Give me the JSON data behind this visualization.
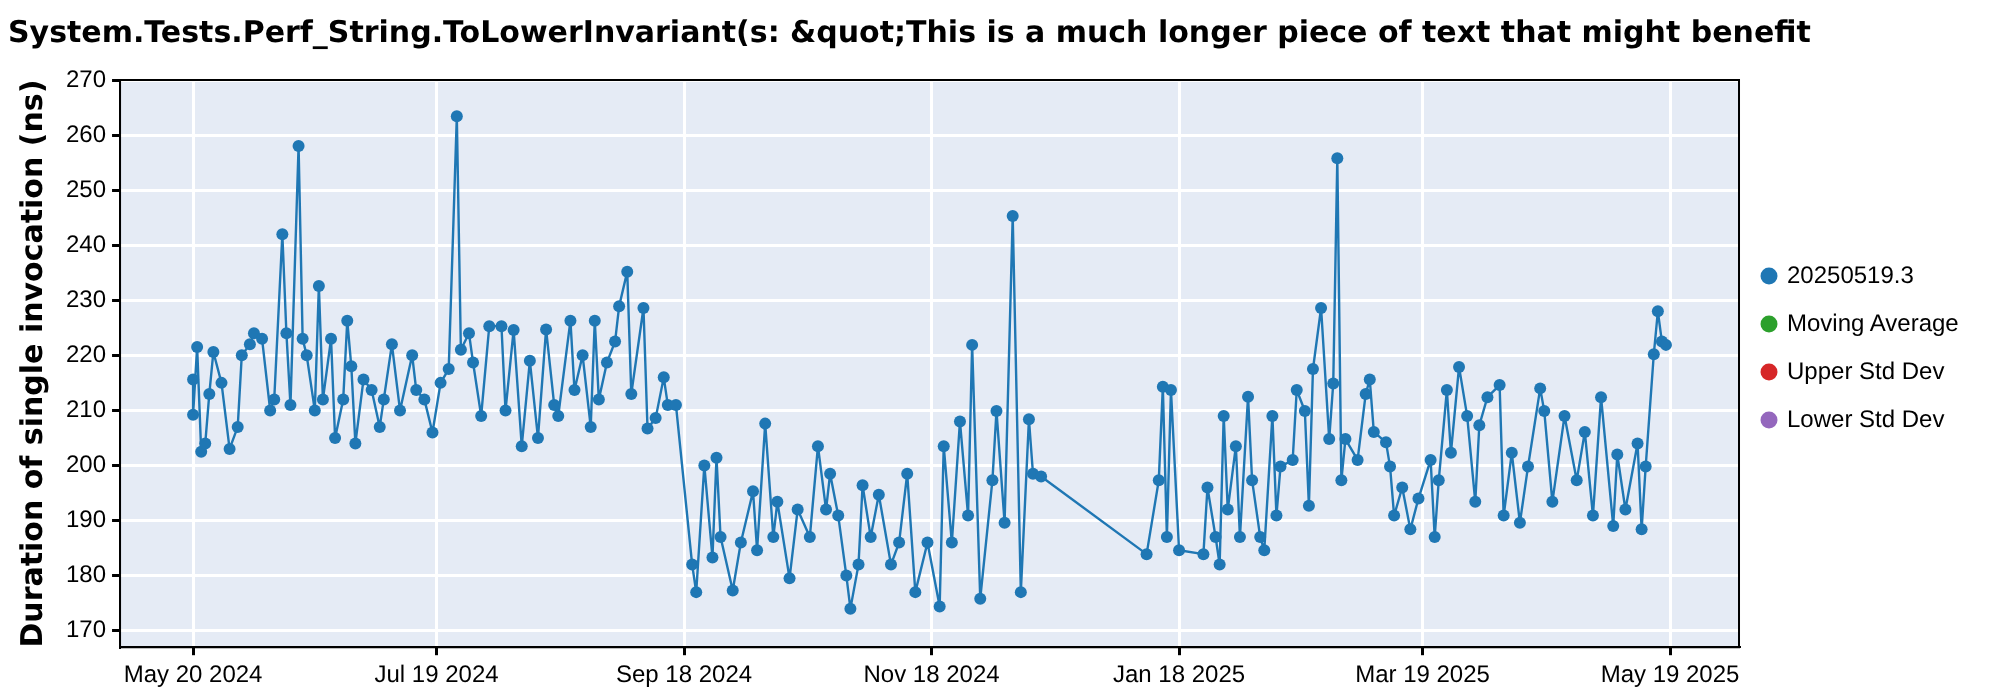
{
  "chart_data": {
    "type": "line",
    "title": "System.Tests.Perf_String.ToLowerInvariant(s: &quot;This is a much longer piece of text that might benefit",
    "ylabel": "Duration of single invocation (ns)",
    "xlim": [
      "2024-05-02",
      "2025-06-05"
    ],
    "xticks": [
      {
        "value": "2024-05-20",
        "label": "May 20 2024"
      },
      {
        "value": "2024-07-19",
        "label": "Jul 19 2024"
      },
      {
        "value": "2024-09-18",
        "label": "Sep 18 2024"
      },
      {
        "value": "2024-11-18",
        "label": "Nov 18 2024"
      },
      {
        "value": "2025-01-18",
        "label": "Jan 18 2025"
      },
      {
        "value": "2025-03-19",
        "label": "Mar 19 2025"
      },
      {
        "value": "2025-05-19",
        "label": "May 19 2025"
      }
    ],
    "ylim": [
      167,
      270
    ],
    "yticks": [
      170,
      180,
      190,
      200,
      210,
      220,
      230,
      240,
      250,
      260,
      270
    ],
    "grid": true,
    "legend": "right",
    "marker": "circle",
    "line_style": "solid",
    "series": [
      {
        "name": "20250519.3",
        "color": "#1f77b4",
        "x": [
          "2024-05-20",
          "2024-05-20",
          "2024-05-21",
          "2024-05-22",
          "2024-05-23",
          "2024-05-24",
          "2024-05-25",
          "2024-05-27",
          "2024-05-29",
          "2024-05-31",
          "2024-06-01",
          "2024-06-03",
          "2024-06-04",
          "2024-06-06",
          "2024-06-08",
          "2024-06-09",
          "2024-06-11",
          "2024-06-12",
          "2024-06-13",
          "2024-06-15",
          "2024-06-16",
          "2024-06-17",
          "2024-06-19",
          "2024-06-20",
          "2024-06-21",
          "2024-06-23",
          "2024-06-24",
          "2024-06-26",
          "2024-06-27",
          "2024-06-28",
          "2024-06-29",
          "2024-07-01",
          "2024-07-03",
          "2024-07-05",
          "2024-07-06",
          "2024-07-08",
          "2024-07-10",
          "2024-07-13",
          "2024-07-14",
          "2024-07-16",
          "2024-07-18",
          "2024-07-20",
          "2024-07-22",
          "2024-07-24",
          "2024-07-25",
          "2024-07-27",
          "2024-07-28",
          "2024-07-30",
          "2024-08-01",
          "2024-08-04",
          "2024-08-05",
          "2024-08-07",
          "2024-08-09",
          "2024-08-11",
          "2024-08-13",
          "2024-08-15",
          "2024-08-17",
          "2024-08-18",
          "2024-08-21",
          "2024-08-22",
          "2024-08-24",
          "2024-08-26",
          "2024-08-27",
          "2024-08-28",
          "2024-08-30",
          "2024-09-01",
          "2024-09-02",
          "2024-09-04",
          "2024-09-05",
          "2024-09-08",
          "2024-09-09",
          "2024-09-11",
          "2024-09-13",
          "2024-09-14",
          "2024-09-16",
          "2024-09-20",
          "2024-09-21",
          "2024-09-23",
          "2024-09-25",
          "2024-09-26",
          "2024-09-27",
          "2024-09-30",
          "2024-10-02",
          "2024-10-05",
          "2024-10-06",
          "2024-10-08",
          "2024-10-10",
          "2024-10-11",
          "2024-10-14",
          "2024-10-16",
          "2024-10-19",
          "2024-10-21",
          "2024-10-23",
          "2024-10-24",
          "2024-10-26",
          "2024-10-28",
          "2024-10-29",
          "2024-10-31",
          "2024-11-01",
          "2024-11-03",
          "2024-11-05",
          "2024-11-08",
          "2024-11-10",
          "2024-11-12",
          "2024-11-14",
          "2024-11-17",
          "2024-11-20",
          "2024-11-21",
          "2024-11-23",
          "2024-11-25",
          "2024-11-27",
          "2024-11-28",
          "2024-11-30",
          "2024-12-03",
          "2024-12-04",
          "2024-12-06",
          "2024-12-08",
          "2024-12-10",
          "2024-12-12",
          "2024-12-13",
          "2024-12-15",
          "2025-01-10",
          "2025-01-13",
          "2025-01-14",
          "2025-01-15",
          "2025-01-16",
          "2025-01-18",
          "2025-01-24",
          "2025-01-25",
          "2025-01-27",
          "2025-01-28",
          "2025-01-29",
          "2025-01-30",
          "2025-02-01",
          "2025-02-02",
          "2025-02-04",
          "2025-02-05",
          "2025-02-07",
          "2025-02-08",
          "2025-02-10",
          "2025-02-11",
          "2025-02-12",
          "2025-02-15",
          "2025-02-16",
          "2025-02-18",
          "2025-02-19",
          "2025-02-20",
          "2025-02-22",
          "2025-02-24",
          "2025-02-25",
          "2025-02-26",
          "2025-02-27",
          "2025-02-28",
          "2025-03-03",
          "2025-03-05",
          "2025-03-06",
          "2025-03-07",
          "2025-03-10",
          "2025-03-11",
          "2025-03-12",
          "2025-03-14",
          "2025-03-16",
          "2025-03-18",
          "2025-03-21",
          "2025-03-22",
          "2025-03-23",
          "2025-03-25",
          "2025-03-26",
          "2025-03-28",
          "2025-03-30",
          "2025-04-01",
          "2025-04-02",
          "2025-04-04",
          "2025-04-07",
          "2025-04-08",
          "2025-04-10",
          "2025-04-12",
          "2025-04-14",
          "2025-04-17",
          "2025-04-18",
          "2025-04-20",
          "2025-04-23",
          "2025-04-26",
          "2025-04-28",
          "2025-04-30",
          "2025-05-02",
          "2025-05-05",
          "2025-05-06",
          "2025-05-08",
          "2025-05-11",
          "2025-05-12",
          "2025-05-13",
          "2025-05-15",
          "2025-05-16",
          "2025-05-17",
          "2025-05-18"
        ],
        "values": [
          215.6,
          209.2,
          221.5,
          202.5,
          204,
          213,
          220.6,
          215,
          203,
          207,
          220,
          222,
          224,
          223,
          210,
          212,
          242,
          224,
          211,
          258,
          223,
          220,
          210,
          232.6,
          212,
          223,
          205,
          212,
          226.3,
          218,
          204,
          215.6,
          213.7,
          207,
          212,
          222,
          210,
          220,
          213.7,
          212,
          206,
          215,
          217.5,
          263.4,
          221,
          224,
          218.7,
          209,
          225.3,
          225.3,
          210,
          224.6,
          203.5,
          219,
          205,
          224.7,
          211,
          209,
          226.3,
          213.7,
          220,
          207,
          226.3,
          212,
          218.7,
          222.5,
          228.9,
          235.2,
          213,
          228.6,
          206.7,
          208.6,
          216,
          211,
          211,
          182,
          177,
          200,
          183.3,
          201.4,
          187,
          177.3,
          186,
          195.3,
          184.6,
          207.6,
          187,
          193.4,
          179.5,
          192,
          187,
          203.5,
          192,
          198.5,
          190.9,
          180,
          174,
          182,
          196.4,
          187,
          194.7,
          182,
          186,
          198.5,
          177,
          186,
          174.4,
          203.5,
          186,
          208,
          190.9,
          221.9,
          175.8,
          197.3,
          209.9,
          189.6,
          245.3,
          177,
          208.4,
          198.5,
          198,
          183.9,
          197.3,
          214.3,
          187,
          213.7,
          184.6,
          183.9,
          196,
          187,
          182,
          209,
          192,
          203.5,
          187,
          212.5,
          197.3,
          187,
          184.6,
          209,
          190.9,
          199.8,
          201,
          213.7,
          209.9,
          192.7,
          217.5,
          228.6,
          204.8,
          214.9,
          255.8,
          197.3,
          204.8,
          201,
          213,
          215.6,
          206.1,
          204.2,
          199.8,
          190.9,
          196,
          188.4,
          194,
          201,
          187,
          197.3,
          213.7,
          202.3,
          217.9,
          209,
          193.4,
          207.3,
          212.4,
          214.6,
          190.9,
          202.3,
          189.6,
          199.8,
          214,
          209.9,
          193.4,
          209,
          197.3,
          206.1,
          190.9,
          212.4,
          189,
          202,
          192,
          204,
          188.4,
          199.8,
          220.2,
          228,
          222.5,
          221.9
        ]
      },
      {
        "name": "Moving Average",
        "color": "#2ca02c"
      },
      {
        "name": "Upper Std Dev",
        "color": "#d62728"
      },
      {
        "name": "Lower Std Dev",
        "color": "#9467bd"
      }
    ]
  }
}
